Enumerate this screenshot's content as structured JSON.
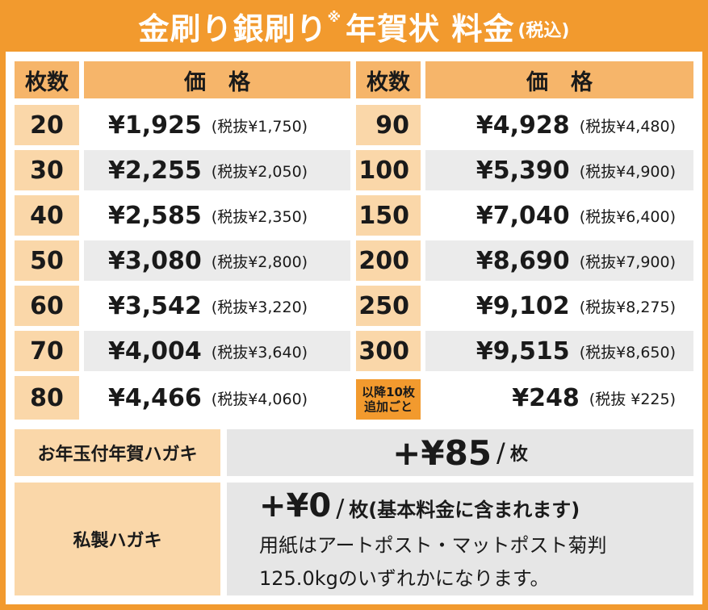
{
  "title": {
    "main": "金刷り銀刷り",
    "mark": "※",
    "sub": "年賀状 料金",
    "tax": "(税込)"
  },
  "table": {
    "headers": {
      "count": "枚数",
      "price": "価格"
    },
    "left_rows": [
      {
        "count": "20",
        "price": "¥1,925",
        "ex_tax": "(税抜¥1,750)"
      },
      {
        "count": "30",
        "price": "¥2,255",
        "ex_tax": "(税抜¥2,050)"
      },
      {
        "count": "40",
        "price": "¥2,585",
        "ex_tax": "(税抜¥2,350)"
      },
      {
        "count": "50",
        "price": "¥3,080",
        "ex_tax": "(税抜¥2,800)"
      },
      {
        "count": "60",
        "price": "¥3,542",
        "ex_tax": "(税抜¥3,220)"
      },
      {
        "count": "70",
        "price": "¥4,004",
        "ex_tax": "(税抜¥3,640)"
      },
      {
        "count": "80",
        "price": "¥4,466",
        "ex_tax": "(税抜¥4,060)"
      }
    ],
    "right_rows": [
      {
        "count": "90",
        "price": "¥4,928",
        "ex_tax": "(税抜¥4,480)"
      },
      {
        "count": "100",
        "price": "¥5,390",
        "ex_tax": "(税抜¥4,900)"
      },
      {
        "count": "150",
        "price": "¥7,040",
        "ex_tax": "(税抜¥6,400)"
      },
      {
        "count": "200",
        "price": "¥8,690",
        "ex_tax": "(税抜¥7,900)"
      },
      {
        "count": "250",
        "price": "¥9,102",
        "ex_tax": "(税抜¥8,275)"
      },
      {
        "count": "300",
        "price": "¥9,515",
        "ex_tax": "(税抜¥8,650)"
      },
      {
        "count_line1": "以降10枚",
        "count_line2": "追加ごと",
        "price": "¥248",
        "ex_tax": "(税抜 ¥225)"
      }
    ]
  },
  "options": {
    "otoshidama": {
      "label": "お年玉付年賀ハガキ",
      "price": "+¥85",
      "slash": "/",
      "unit": "枚"
    },
    "shisei": {
      "label": "私製ハガキ",
      "price": "+¥0",
      "slash": "/",
      "unit": "枚(基本料金に含まれます)",
      "note_line1": "用紙はアートポスト・マットポスト菊判",
      "note_line2": "125.0kgのいずれかになります。"
    }
  },
  "colors": {
    "orange": "#f29a2e",
    "header_orange": "#f6b56a",
    "light_orange": "#fad7a9",
    "light_gray": "#ebebeb"
  }
}
